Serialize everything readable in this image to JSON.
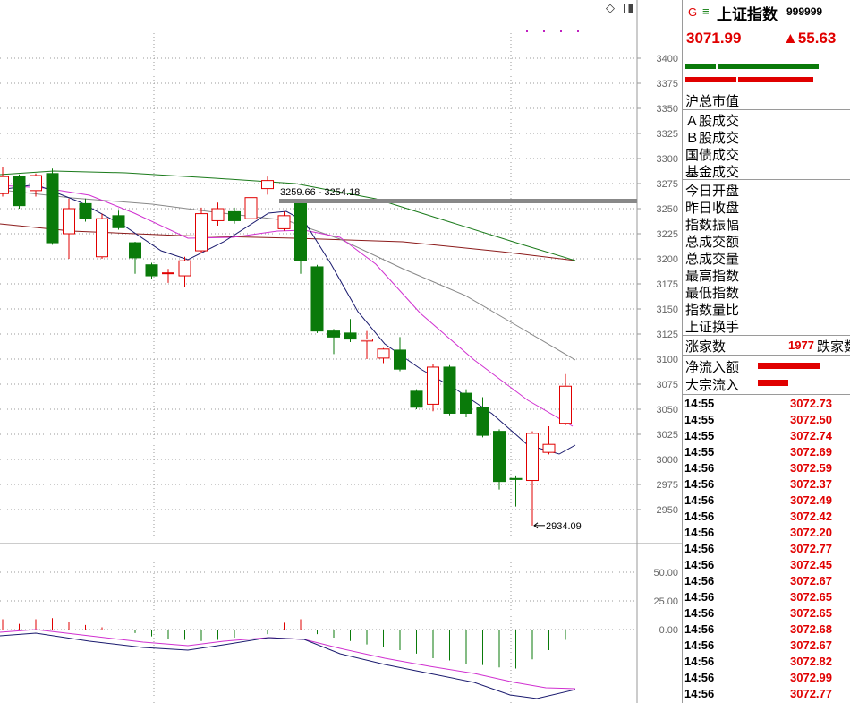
{
  "header": {
    "g_icon": "G",
    "menu_icon": "≡",
    "title": "上证指数",
    "code": "999999",
    "price": "3071.99",
    "change": "▲55.63"
  },
  "toolbar": {
    "diamond_icon": "◇",
    "panel_icon": "panel-toggle-icon"
  },
  "info_labels": {
    "market_value": "沪总市值",
    "a_share": "Ａ股成交",
    "b_share": "Ｂ股成交",
    "gov_bond": "国债成交",
    "fund": "基金成交",
    "open": "今日开盘",
    "prev_close": "昨日收盘",
    "amplitude": "指数振幅",
    "turnover_amount": "总成交额",
    "turnover_volume": "总成交量",
    "high": "最高指数",
    "low": "最低指数",
    "volume_ratio": "指数量比",
    "turnover_rate": "上证换手",
    "rising_label": "涨家数",
    "rising_count": "1977",
    "falling_label": "跌家数",
    "net_inflow": "净流入额",
    "block_inflow": "大宗流入"
  },
  "trades": [
    {
      "time": "14:55",
      "price": "3072.73"
    },
    {
      "time": "14:55",
      "price": "3072.50"
    },
    {
      "time": "14:55",
      "price": "3072.74"
    },
    {
      "time": "14:55",
      "price": "3072.69"
    },
    {
      "time": "14:56",
      "price": "3072.59"
    },
    {
      "time": "14:56",
      "price": "3072.37"
    },
    {
      "time": "14:56",
      "price": "3072.49"
    },
    {
      "time": "14:56",
      "price": "3072.42"
    },
    {
      "time": "14:56",
      "price": "3072.20"
    },
    {
      "time": "14:56",
      "price": "3072.77"
    },
    {
      "time": "14:56",
      "price": "3072.45"
    },
    {
      "time": "14:56",
      "price": "3072.67"
    },
    {
      "time": "14:56",
      "price": "3072.65"
    },
    {
      "time": "14:56",
      "price": "3072.65"
    },
    {
      "time": "14:56",
      "price": "3072.68"
    },
    {
      "time": "14:56",
      "price": "3072.67"
    },
    {
      "time": "14:56",
      "price": "3072.82"
    },
    {
      "time": "14:56",
      "price": "3072.99"
    },
    {
      "time": "14:56",
      "price": "3072.77"
    }
  ],
  "colors": {
    "up": "#e00000",
    "down": "#0a7a0a",
    "axis": "#9a9a9a"
  },
  "chart_data": {
    "type": "candlestick",
    "price_ticks": [
      "3400",
      "3375",
      "3350",
      "3325",
      "3300",
      "3275",
      "3250",
      "3225",
      "3200",
      "3175",
      "3150",
      "3125",
      "3100",
      "3075",
      "3050",
      "3025",
      "3000",
      "2975",
      "2950"
    ],
    "price_ylim": [
      2925,
      3425
    ],
    "candles": [
      {
        "o": 3265,
        "c": 3282,
        "h": 3292,
        "l": 3262
      },
      {
        "o": 3282,
        "c": 3253,
        "h": 3284,
        "l": 3250
      },
      {
        "o": 3268,
        "c": 3283,
        "h": 3285,
        "l": 3262
      },
      {
        "o": 3285,
        "c": 3216,
        "h": 3290,
        "l": 3214
      },
      {
        "o": 3225,
        "c": 3250,
        "h": 3260,
        "l": 3200
      },
      {
        "o": 3255,
        "c": 3240,
        "h": 3260,
        "l": 3237
      },
      {
        "o": 3202,
        "c": 3240,
        "h": 3245,
        "l": 3200
      },
      {
        "o": 3243,
        "c": 3231,
        "h": 3248,
        "l": 3229
      },
      {
        "o": 3216,
        "c": 3201,
        "h": 3217,
        "l": 3185
      },
      {
        "o": 3194,
        "c": 3183,
        "h": 3196,
        "l": 3180
      },
      {
        "o": 3186,
        "c": 3186,
        "h": 3190,
        "l": 3176
      },
      {
        "o": 3183,
        "c": 3198,
        "h": 3202,
        "l": 3172
      },
      {
        "o": 3208,
        "c": 3245,
        "h": 3251,
        "l": 3206
      },
      {
        "o": 3238,
        "c": 3250,
        "h": 3256,
        "l": 3233
      },
      {
        "o": 3247,
        "c": 3238,
        "h": 3251,
        "l": 3235
      },
      {
        "o": 3240,
        "c": 3261,
        "h": 3265,
        "l": 3238
      },
      {
        "o": 3270,
        "c": 3278,
        "h": 3282,
        "l": 3264
      },
      {
        "o": 3230,
        "c": 3243,
        "h": 3247,
        "l": 3228
      },
      {
        "o": 3255,
        "c": 3198,
        "h": 3257,
        "l": 3185
      },
      {
        "o": 3192,
        "c": 3128,
        "h": 3194,
        "l": 3126
      },
      {
        "o": 3128,
        "c": 3122,
        "h": 3130,
        "l": 3105
      },
      {
        "o": 3126,
        "c": 3120,
        "h": 3140,
        "l": 3117
      },
      {
        "o": 3118,
        "c": 3120,
        "h": 3128,
        "l": 3100
      },
      {
        "o": 3101,
        "c": 3110,
        "h": 3111,
        "l": 3096
      },
      {
        "o": 3109,
        "c": 3090,
        "h": 3122,
        "l": 3088
      },
      {
        "o": 3068,
        "c": 3052,
        "h": 3070,
        "l": 3050
      },
      {
        "o": 3055,
        "c": 3092,
        "h": 3095,
        "l": 3048
      },
      {
        "o": 3092,
        "c": 3046,
        "h": 3094,
        "l": 3044
      },
      {
        "o": 3066,
        "c": 3046,
        "h": 3070,
        "l": 3042
      },
      {
        "o": 3052,
        "c": 3024,
        "h": 3062,
        "l": 3022
      },
      {
        "o": 3028,
        "c": 2978,
        "h": 3030,
        "l": 2970
      },
      {
        "o": 2981,
        "c": 2980,
        "h": 2984,
        "l": 2953
      },
      {
        "o": 2979,
        "c": 3026,
        "h": 3028,
        "l": 2934.09
      },
      {
        "o": 3007,
        "c": 3015,
        "h": 3033,
        "l": 3005
      },
      {
        "o": 3036,
        "c": 3073,
        "h": 3085,
        "l": 3034
      }
    ],
    "range_annotation": "3259.66 - 3254.18",
    "low_annotation": "2934.09",
    "indicator_ticks": [
      "50.00",
      "25.00",
      "0.00"
    ],
    "indicator_ylim": [
      -68,
      68
    ],
    "macd_bars": [
      9,
      5,
      9,
      10,
      7,
      4,
      2,
      0,
      -3,
      -6,
      -8,
      -9,
      -10,
      -9,
      -7,
      -6,
      -4,
      6,
      9,
      -4,
      -7,
      -10,
      -13,
      -15,
      -18,
      -21,
      -25,
      -27,
      -30,
      -31,
      -33,
      -34,
      -26,
      -18,
      -9
    ]
  }
}
